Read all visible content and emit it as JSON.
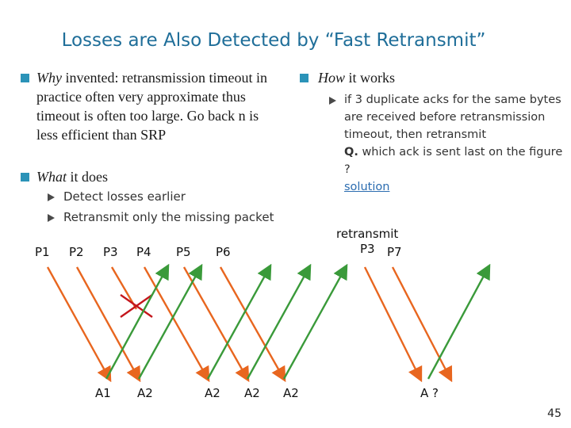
{
  "title": "Losses are Also Detected by “Fast Retransmit”",
  "left": {
    "why_label": "Why",
    "why_text": " invented: retransmission timeout in practice often very approximate thus timeout is often too large. Go back n is less efficient than SRP",
    "what_label": "What",
    "what_text": " it does",
    "subitems": [
      "Detect losses earlier",
      "Retransmit only the missing packet"
    ]
  },
  "right": {
    "how_label": "How",
    "how_text": " it works",
    "sub_text": "if 3 duplicate acks for the same bytes are received before retransmission timeout, then retransmit",
    "q_label": "Q.",
    "q_text": " which ack is sent last on the figure ?",
    "solution": "solution"
  },
  "diagram": {
    "packet_labels": [
      "P1",
      "P2",
      "P3",
      "P4",
      "P5",
      "P6"
    ],
    "retransmit_label": "retransmit",
    "retransmit_packet": "P3",
    "p7_label": "P7",
    "ack_labels": [
      "A1",
      "A2",
      "A2",
      "A2",
      "A2",
      "A ?"
    ],
    "colors": {
      "packet": "#e8661f",
      "ack": "#3a9a3a",
      "lost": "#c4161c"
    },
    "lost_packet": "P3"
  },
  "page_number": "45"
}
